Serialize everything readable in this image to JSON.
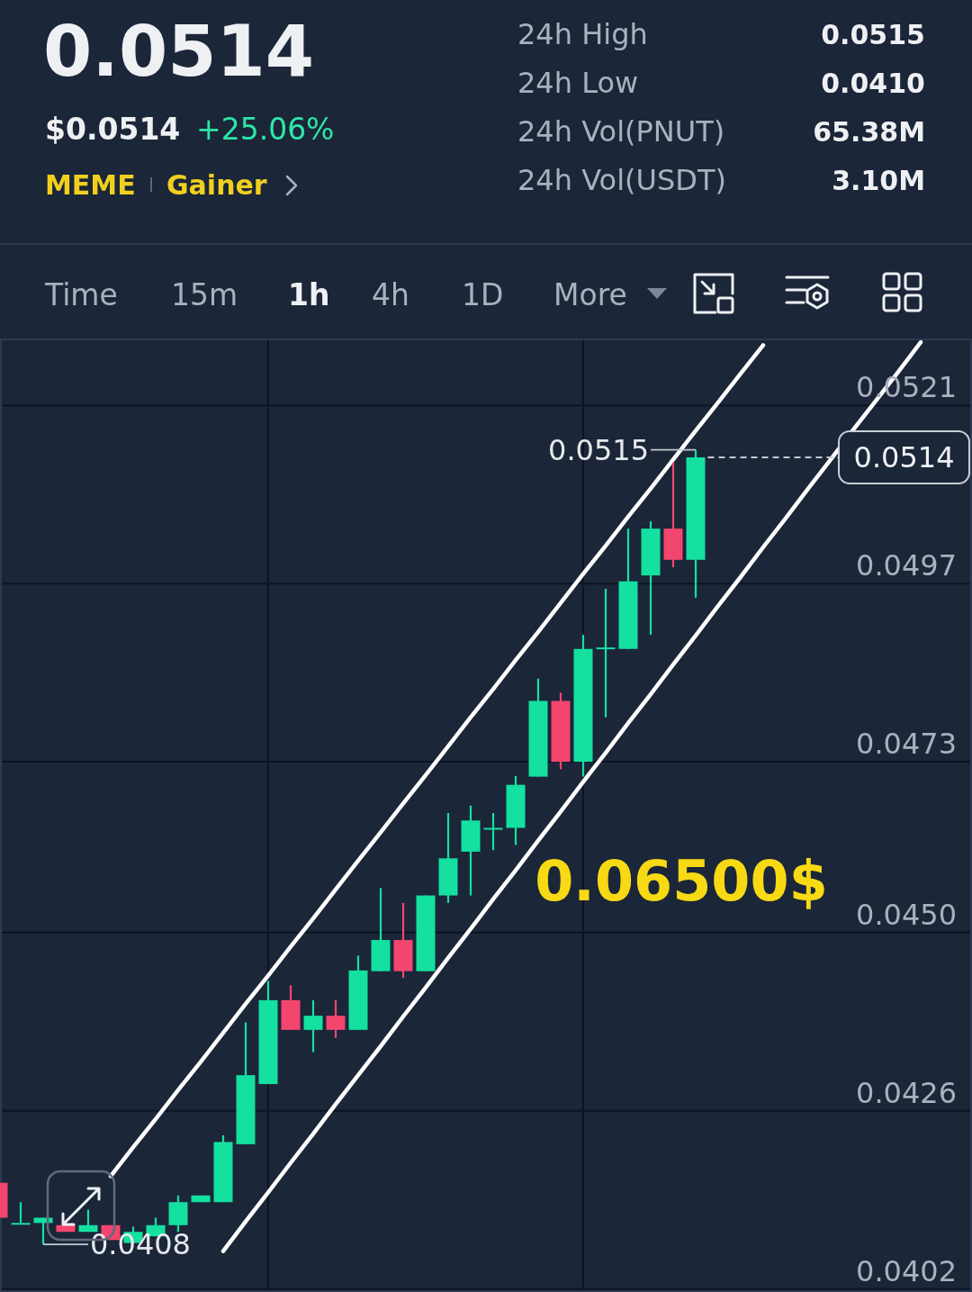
{
  "chart_data": [
    {
      "type": "other",
      "title": "0.0514",
      "annotations": [
        "$0.0514",
        "+25.06%",
        "MEME",
        "Gainer",
        "24h High",
        "0.0515",
        "24h Low",
        "0.0410",
        "24h Vol(PNUT)",
        "65.38M",
        "24h Vol(USDT)",
        "3.10M",
        "Time",
        "15m",
        "1h",
        "4h",
        "1D",
        "More"
      ]
    },
    {
      "type": "candlestick",
      "categories": [
        null,
        null,
        null,
        null,
        null,
        null,
        null,
        null,
        null,
        null,
        null,
        null,
        null,
        null,
        null,
        null,
        null,
        null,
        null,
        null,
        null,
        null,
        null,
        null,
        null,
        null,
        null,
        null,
        null,
        null,
        null,
        null,
        null,
        null,
        null,
        null,
        null,
        null,
        null,
        null,
        null,
        null,
        null,
        null
      ],
      "ohlc": [
        [
          0.04163,
          0.04163,
          0.04116,
          0.04116
        ],
        [
          0.04109,
          0.04137,
          0.04109,
          0.04109
        ],
        [
          0.04109,
          0.04116,
          0.0408,
          0.04116
        ],
        [
          0.04106,
          0.04106,
          0.04097,
          0.04097
        ],
        [
          0.04097,
          0.04127,
          0.04097,
          0.04106
        ],
        [
          0.04106,
          0.04106,
          0.04086,
          0.04086
        ],
        [
          0.04082,
          0.04104,
          0.04082,
          0.04097
        ],
        [
          0.04091,
          0.04116,
          0.04091,
          0.04106
        ],
        [
          0.04106,
          0.04146,
          0.04097,
          0.04137
        ],
        [
          0.04137,
          0.04146,
          0.04137,
          0.04146
        ],
        [
          0.04137,
          0.04227,
          0.04137,
          0.04218
        ],
        [
          0.04215,
          0.04379,
          0.04215,
          0.04308
        ],
        [
          0.04296,
          0.04435,
          0.04296,
          0.04409
        ],
        [
          0.04409,
          0.04429,
          0.04369,
          0.04369
        ],
        [
          0.04369,
          0.04409,
          0.04339,
          0.04388
        ],
        [
          0.04388,
          0.04409,
          0.04358,
          0.04369
        ],
        [
          0.04369,
          0.04469,
          0.04369,
          0.04449
        ],
        [
          0.04448,
          0.0456,
          0.04448,
          0.0449
        ],
        [
          0.0449,
          0.0454,
          0.04439,
          0.04448
        ],
        [
          0.04448,
          0.0455,
          0.04448,
          0.0455
        ],
        [
          0.0455,
          0.04661,
          0.0454,
          0.046
        ],
        [
          0.04609,
          0.04671,
          0.0455,
          0.04651
        ],
        [
          0.04641,
          0.04661,
          0.04611,
          0.04641
        ],
        [
          0.04641,
          0.04711,
          0.04618,
          0.04699
        ],
        [
          0.0471,
          0.04842,
          0.0471,
          0.04812
        ],
        [
          0.04812,
          0.04823,
          0.0472,
          0.0473
        ],
        [
          0.0473,
          0.04901,
          0.0471,
          0.04882
        ],
        [
          0.04884,
          0.04963,
          0.0479,
          0.04884
        ],
        [
          0.04882,
          0.05044,
          0.04882,
          0.04973
        ],
        [
          0.04981,
          0.05054,
          0.04901,
          0.05044
        ],
        [
          0.05044,
          0.05133,
          0.04992,
          0.05002
        ],
        [
          0.05002,
          0.0515,
          0.04951,
          0.0514
        ],
        null,
        null,
        null,
        null,
        null,
        null,
        null,
        null,
        null,
        null,
        null,
        null
      ],
      "colors": [
        "#f2466f",
        "#14e0a0",
        "#14e0a0",
        "#f2466f",
        "#14e0a0",
        "#f2466f",
        "#14e0a0",
        "#14e0a0",
        "#14e0a0",
        "#14e0a0",
        "#14e0a0",
        "#14e0a0",
        "#14e0a0",
        "#f2466f",
        "#14e0a0",
        "#f2466f",
        "#14e0a0",
        "#14e0a0",
        "#f2466f",
        "#14e0a0",
        "#14e0a0",
        "#14e0a0",
        "#14e0a0",
        "#14e0a0",
        "#14e0a0",
        "#f2466f",
        "#14e0a0",
        "#14e0a0",
        "#14e0a0",
        "#14e0a0",
        "#f2466f",
        "#14e0a0",
        null,
        null,
        null,
        null,
        null,
        null,
        null,
        null,
        null,
        null,
        null,
        null
      ],
      "series": [
        {
          "type": "line",
          "color": "#ffffff",
          "values": [
            null,
            null,
            null,
            null,
            null,
            0.04172,
            0.04211,
            0.04249,
            0.04288,
            0.04326,
            0.04365,
            0.04404,
            0.04442,
            0.04481,
            0.04519,
            0.04558,
            0.04597,
            0.04635,
            0.04674,
            0.04712,
            0.04751,
            0.0479,
            0.04828,
            0.04867,
            0.04905,
            0.04944,
            0.04983,
            0.05021,
            0.0506,
            0.05098,
            0.05137,
            0.05176,
            0.05214,
            0.05253,
            0.05291,
            null,
            null,
            null,
            null,
            null,
            null,
            null,
            null,
            null
          ]
        },
        {
          "type": "line",
          "color": "#ffffff",
          "values": [
            null,
            null,
            null,
            null,
            null,
            null,
            null,
            null,
            null,
            null,
            0.04071,
            0.04111,
            0.0415,
            0.0419,
            0.04229,
            0.04269,
            0.04308,
            0.04347,
            0.04387,
            0.04426,
            0.04466,
            0.04505,
            0.04545,
            0.04584,
            0.04624,
            0.04663,
            0.04703,
            0.04742,
            0.04782,
            0.04821,
            0.04861,
            0.049,
            0.0494,
            0.04979,
            0.05019,
            0.05058,
            0.05098,
            0.05137,
            0.05177,
            0.05216,
            0.05255,
            0.05295,
            null,
            null
          ]
        }
      ],
      "ylim": [
        0.04016,
        0.053
      ],
      "yticks": [
        0.0402,
        0.0426,
        {
          "value": 0.045,
          "label": "0.0450"
        },
        0.0473,
        0.0497,
        0.0521
      ],
      "grid": true,
      "ref_lines": [
        {
          "axis": "y",
          "value": 0.0514,
          "label": "0.0514",
          "line_style": "dashed"
        }
      ],
      "annotations": [
        "0.0515",
        "0.0408",
        "0.06500$"
      ]
    }
  ]
}
